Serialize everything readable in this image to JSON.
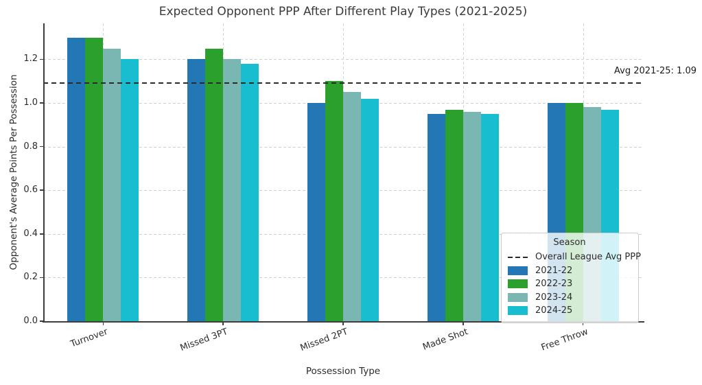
{
  "chart_data": {
    "type": "bar",
    "title": "Expected Opponent PPP After Different Play Types (2021-2025)",
    "xlabel": "Possession Type",
    "ylabel": "Opponent's Average Points Per Possession",
    "categories": [
      "Turnover",
      "Missed 3PT",
      "Missed 2PT",
      "Made Shot",
      "Free Throw"
    ],
    "series": [
      {
        "name": "2021-22",
        "color": "#2277b4",
        "values": [
          1.3,
          1.2,
          1.0,
          0.95,
          1.0
        ]
      },
      {
        "name": "2022-23",
        "color": "#2ca02c",
        "values": [
          1.3,
          1.25,
          1.1,
          0.97,
          1.0
        ]
      },
      {
        "name": "2023-24",
        "color": "#7ab6b2",
        "values": [
          1.25,
          1.2,
          1.05,
          0.96,
          0.98
        ]
      },
      {
        "name": "2024-25",
        "color": "#19bdd0",
        "values": [
          1.2,
          1.18,
          1.02,
          0.95,
          0.97
        ]
      }
    ],
    "avg_line": {
      "value": 1.09,
      "label": "Avg 2021-25: 1.09",
      "legend_label": "Overall League Avg PPP",
      "color": "#2a2a2a",
      "style": "dashed"
    },
    "legend": {
      "title": "Season",
      "position": "lower right"
    },
    "yticks": [
      0.0,
      0.2,
      0.4,
      0.6,
      0.8,
      1.0,
      1.2
    ],
    "ylim": [
      0,
      1.365
    ],
    "grid": true
  }
}
